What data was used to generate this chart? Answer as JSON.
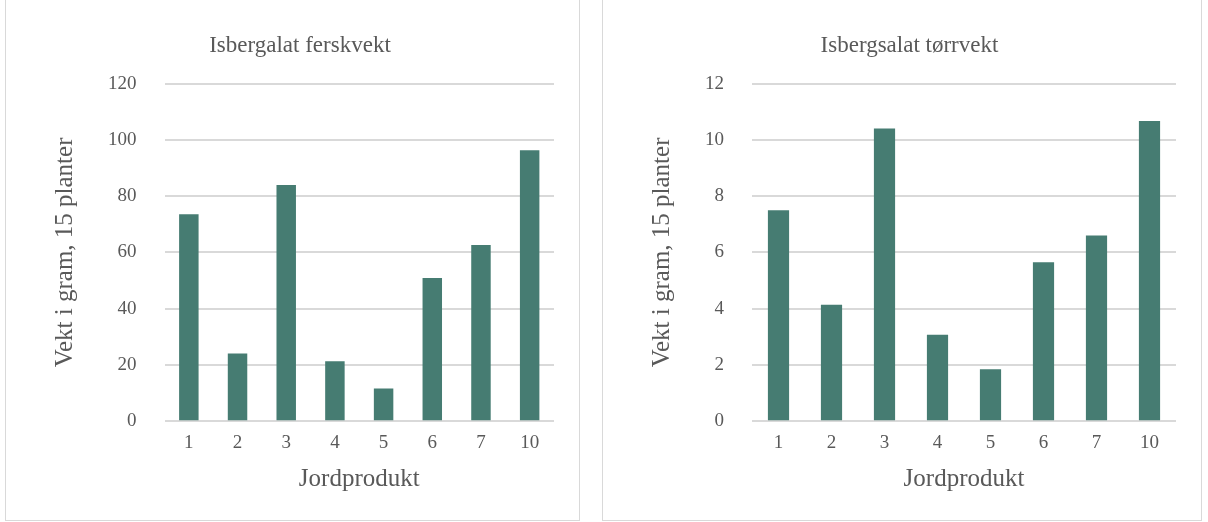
{
  "chart_data": [
    {
      "type": "bar",
      "title": "Isbergalat ferskvekt",
      "xlabel": "Jordprodukt",
      "ylabel": "Vekt i gram, 15 planter",
      "categories": [
        "1",
        "2",
        "3",
        "4",
        "5",
        "6",
        "7",
        "10"
      ],
      "values": [
        73.6,
        24.1,
        84,
        21.3,
        11.6,
        50.9,
        62.6,
        96.3
      ],
      "color": "#467c72",
      "ylim": [
        0,
        120
      ],
      "yticks": [
        0,
        20,
        40,
        60,
        80,
        100,
        120
      ],
      "grid": "y"
    },
    {
      "type": "bar",
      "title": "Isbergsalat tørrvekt",
      "xlabel": "Jordprodukt",
      "ylabel": "Vekt i gram, 15 planter",
      "categories": [
        "1",
        "2",
        "3",
        "4",
        "5",
        "6",
        "7",
        "10"
      ],
      "values": [
        7.5,
        4.14,
        10.4,
        3.07,
        1.85,
        5.65,
        6.6,
        10.67
      ],
      "color": "#467c72",
      "ylim": [
        0,
        12
      ],
      "yticks": [
        0,
        2,
        4,
        6,
        8,
        10,
        12
      ],
      "grid": "y"
    }
  ]
}
